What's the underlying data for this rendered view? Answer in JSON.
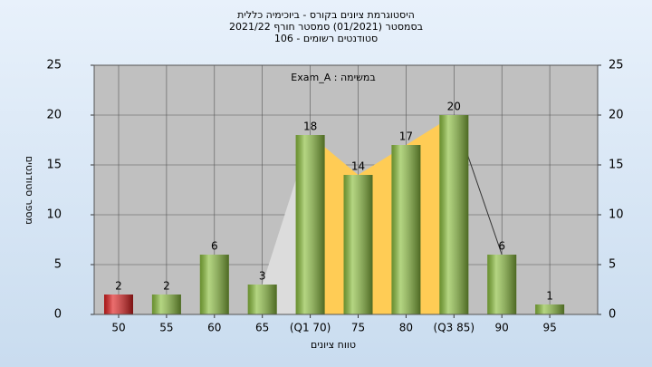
{
  "chart_data": {
    "type": "bar",
    "title": [
      "היסטוגרמת ציונים בקורס - ביוכימיה כללית",
      "בסמסטר  (01/2021)  סמסטר חורף 2021/22",
      "סטודנטים רשומים - 106"
    ],
    "annotation": "במשימה : Exam_A",
    "x_label": "טווח ציונים",
    "y_label": "מספר סטודנטים",
    "categories": [
      "50",
      "55",
      "60",
      "65",
      "(Q1 70)",
      "75",
      "80",
      "(Q3 85)",
      "90",
      "95"
    ],
    "values": [
      2,
      2,
      6,
      3,
      18,
      14,
      17,
      20,
      6,
      1
    ],
    "colors": [
      "#e02020",
      "#8cbf3f",
      "#8cbf3f",
      "#8cbf3f",
      "#8cbf3f",
      "#8cbf3f",
      "#8cbf3f",
      "#8cbf3f",
      "#8cbf3f",
      "#8cbf3f"
    ],
    "quartile_color": "#ffcc55",
    "ylim": [
      0,
      25
    ],
    "yticks": [
      0,
      5,
      10,
      15,
      20,
      25
    ],
    "y2lim": [
      0,
      25
    ],
    "y2ticks": [
      0,
      5,
      10,
      15,
      20,
      25
    ],
    "grid": true
  }
}
